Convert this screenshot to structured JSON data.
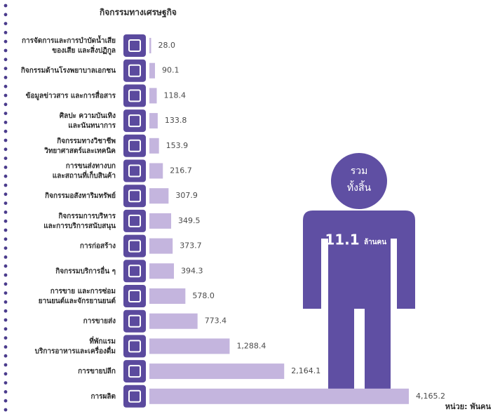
{
  "chart_data": {
    "type": "bar",
    "orientation": "horizontal",
    "title": "กิจกรรมทางเศรษฐกิจ",
    "categories": [
      [
        "การจัดการและการบำบัดน้ำเสีย",
        "ของเสีย และสิ่งปฏิกูล"
      ],
      [
        "กิจกรรมด้านโรงพยาบาลเอกชน"
      ],
      [
        "ข้อมูลข่าวสาร และการสื่อสาร"
      ],
      [
        "ศิลปะ ความบันเทิง",
        "และนันทนาการ"
      ],
      [
        "กิจกรรมทางวิชาชีพ",
        "วิทยาศาสตร์และเทคนิค"
      ],
      [
        "การขนส่งทางบก",
        "และสถานที่เก็บสินค้า"
      ],
      [
        "กิจกรรมอสังหาริมทรัพย์"
      ],
      [
        "กิจกรรมการบริหาร",
        "และการบริการสนับสนุน"
      ],
      [
        "การก่อสร้าง"
      ],
      [
        "กิจกรรมบริการอื่น ๆ"
      ],
      [
        "การขาย และการซ่อม",
        "ยานยนต์และจักรยานยนต์"
      ],
      [
        "การขายส่ง"
      ],
      [
        "ที่พักแรม",
        "บริการอาหารและเครื่องดื่ม"
      ],
      [
        "การขายปลีก"
      ],
      [
        "การผลิต"
      ]
    ],
    "values": [
      28.0,
      90.1,
      118.4,
      133.8,
      153.9,
      216.7,
      307.9,
      349.5,
      373.7,
      394.3,
      578.0,
      773.4,
      1288.4,
      2164.1,
      4165.2
    ],
    "value_labels": [
      "28.0",
      "90.1",
      "118.4",
      "133.8",
      "153.9",
      "216.7",
      "307.9",
      "349.5",
      "373.7",
      "394.3",
      "578.0",
      "773.4",
      "1,288.4",
      "2,164.1",
      "4,165.2"
    ],
    "color": "#c4b5de",
    "icon_color": "#5b4a9e",
    "total": {
      "label_top": "รวม",
      "label_mid": "ทั้งสิ้น",
      "value": "11.1",
      "unit": "ล้านคน"
    },
    "unit_note": "หน่วย: พันคน"
  }
}
